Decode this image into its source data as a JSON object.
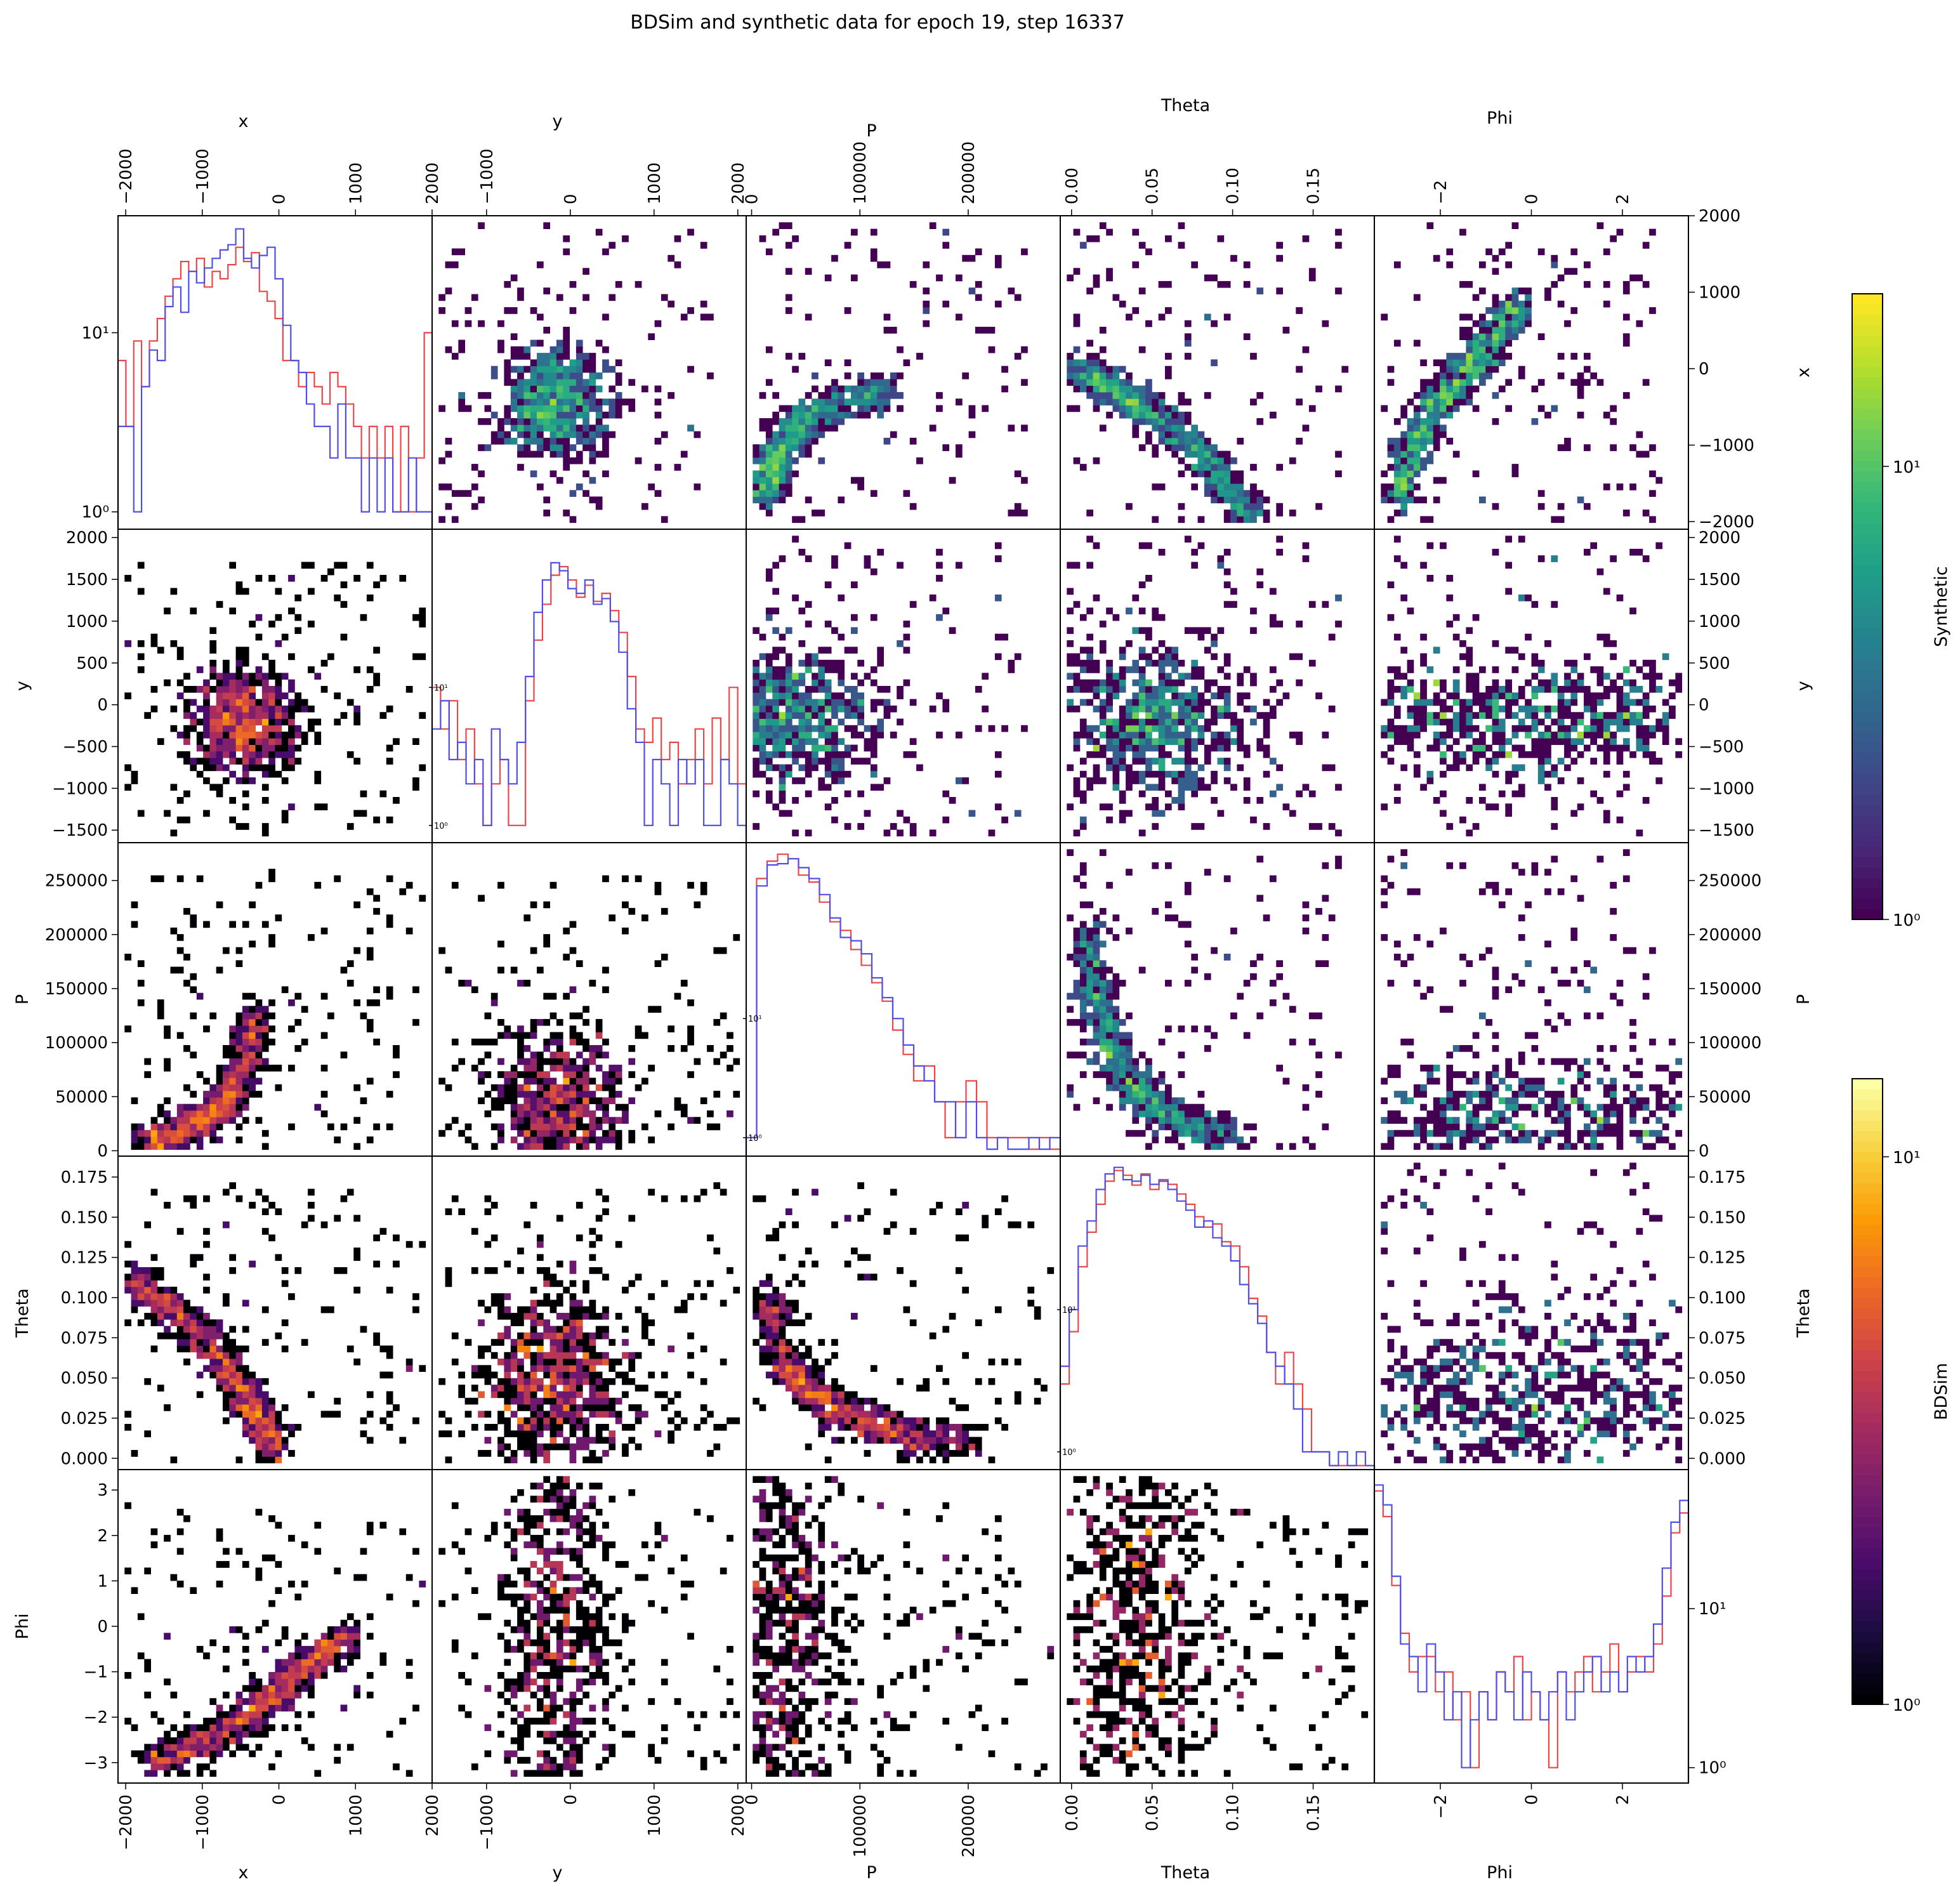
{
  "title": "BDSim and synthetic data for epoch 19, step 16337",
  "colorbars": [
    {
      "label": "Synthetic",
      "colormap": "viridis",
      "scale": "log",
      "tick_labels": [
        "10⁰",
        "10¹"
      ]
    },
    {
      "label": "BDSim",
      "colormap": "inferno",
      "scale": "log",
      "tick_labels": [
        "10⁰",
        "10¹"
      ]
    }
  ],
  "colors": {
    "bdsim_hist": "#e8474a",
    "synthetic_hist": "#4f4fe6",
    "frame": "#000000"
  },
  "chart_data": {
    "type": "pairplot",
    "variables": [
      "x",
      "y",
      "P",
      "Theta",
      "Phi"
    ],
    "lower_triangle": "BDSim 2D histograms (inferno, log color)",
    "upper_triangle": "Synthetic 2D histograms (viridis, log color)",
    "diagonal": "1D histograms, log y-scale (red = BDSim, blue = Synthetic)",
    "axes": {
      "x": {
        "range": [
          -2100,
          2000
        ],
        "ticks": [
          -2000,
          -1000,
          0,
          1000,
          2000
        ],
        "tick_labels": [
          "−2000",
          "−1000",
          "0",
          "1000",
          "2000"
        ]
      },
      "y": {
        "range": [
          -1650,
          2100
        ],
        "ticks": [
          -1500,
          -1000,
          -500,
          0,
          500,
          1000,
          1500,
          2000
        ],
        "tick_labels": [
          "−1500",
          "−1000",
          "−500",
          "0",
          "500",
          "1000",
          "1500",
          "2000"
        ],
        "top_ticks": [
          -1000,
          0,
          1000,
          2000
        ],
        "top_tick_labels": [
          "−1000",
          "0",
          "1000",
          "2000"
        ]
      },
      "P": {
        "range": [
          -5000,
          285000
        ],
        "ticks": [
          0,
          50000,
          100000,
          150000,
          200000,
          250000
        ],
        "tick_labels": [
          "0",
          "50000",
          "100000",
          "150000",
          "200000",
          "250000"
        ],
        "top_ticks": [
          0,
          100000,
          200000
        ],
        "top_tick_labels": [
          "0",
          "100000",
          "200000"
        ]
      },
      "Theta": {
        "range": [
          -0.007,
          0.188
        ],
        "ticks": [
          0.0,
          0.025,
          0.05,
          0.075,
          0.1,
          0.125,
          0.15,
          0.175
        ],
        "tick_labels": [
          "0.000",
          "0.025",
          "0.050",
          "0.075",
          "0.100",
          "0.125",
          "0.150",
          "0.175"
        ],
        "top_ticks": [
          0.0,
          0.05,
          0.1,
          0.15
        ],
        "top_tick_labels": [
          "0.00",
          "0.05",
          "0.10",
          "0.15"
        ]
      },
      "Phi": {
        "range": [
          -3.45,
          3.45
        ],
        "ticks": [
          -3,
          -2,
          -1,
          0,
          1,
          2,
          3
        ],
        "tick_labels": [
          "−3",
          "−2",
          "−1",
          "0",
          "1",
          "2",
          "3"
        ],
        "top_ticks": [
          -2,
          0,
          2
        ],
        "top_tick_labels": [
          "−2",
          "0",
          "2"
        ]
      }
    },
    "diagonal_histograms": {
      "x": {
        "bdsim": [
          7,
          3,
          9,
          5,
          9,
          12,
          16,
          20,
          25,
          22,
          26,
          18,
          22,
          20,
          24,
          30,
          25,
          28,
          17,
          15,
          12,
          7,
          7,
          5,
          6,
          5,
          4,
          6,
          5,
          4,
          3,
          2,
          3,
          2,
          3,
          1,
          3,
          1,
          2,
          10
        ],
        "synthetic": [
          3,
          3,
          1,
          5,
          8,
          7,
          14,
          18,
          13,
          22,
          19,
          23,
          26,
          29,
          31,
          38,
          26,
          23,
          27,
          30,
          20,
          11,
          7,
          6,
          4,
          3,
          3,
          2,
          4,
          2,
          2,
          1,
          2,
          1,
          2,
          1,
          1,
          2,
          1,
          1
        ],
        "ylim": [
          0.8,
          45
        ],
        "ytick_labels": [
          "10⁰",
          "10¹"
        ]
      },
      "y": {
        "bdsim": [
          10,
          5,
          8,
          3,
          5,
          2,
          1,
          2,
          3,
          1,
          1,
          8,
          22,
          40,
          65,
          75,
          60,
          45,
          55,
          42,
          48,
          36,
          25,
          12,
          5,
          4,
          6,
          3,
          4,
          2,
          3,
          5,
          2,
          6,
          3,
          10,
          2
        ],
        "synthetic": [
          5,
          8,
          3,
          4,
          2,
          3,
          1,
          5,
          3,
          2,
          4,
          12,
          35,
          60,
          80,
          70,
          52,
          48,
          60,
          40,
          44,
          30,
          18,
          7,
          4,
          1,
          3,
          2,
          1,
          3,
          2,
          3,
          1,
          1,
          3,
          2,
          1
        ],
        "ylim": [
          0.75,
          140
        ],
        "ytick_labels": [
          "10⁰",
          "10¹"
        ]
      },
      "P": {
        "bdsim": [
          1,
          150,
          210,
          240,
          220,
          160,
          140,
          95,
          65,
          55,
          38,
          28,
          20,
          14,
          8,
          5,
          3,
          4,
          2,
          1,
          2,
          3,
          2,
          1,
          1,
          1,
          1,
          0.8,
          1,
          0.8
        ],
        "synthetic": [
          1,
          130,
          195,
          200,
          220,
          185,
          150,
          110,
          70,
          48,
          45,
          35,
          22,
          15,
          10,
          6,
          4,
          3,
          2,
          2,
          1,
          2,
          1,
          0.8,
          1,
          0.8,
          0.8,
          1,
          0.8,
          1
        ],
        "ylim": [
          0.7,
          300
        ],
        "ytick_labels": [
          "10⁰",
          "10¹"
        ]
      },
      "Theta": {
        "bdsim": [
          3,
          7,
          20,
          35,
          55,
          80,
          95,
          88,
          75,
          90,
          70,
          82,
          76,
          65,
          55,
          45,
          38,
          40,
          30,
          28,
          20,
          12,
          9,
          5,
          3,
          5,
          3,
          2,
          1,
          1,
          0.8,
          0.8,
          0.8,
          0.8,
          0.8
        ],
        "synthetic": [
          4,
          10,
          28,
          42,
          70,
          90,
          100,
          82,
          80,
          88,
          76,
          80,
          70,
          58,
          50,
          38,
          42,
          32,
          28,
          22,
          15,
          11,
          8,
          5,
          4,
          3,
          2,
          1,
          1,
          1,
          0.8,
          1,
          0.8,
          1,
          0.8
        ],
        "ylim": [
          0.75,
          120
        ],
        "ytick_labels": [
          "10⁰",
          "10¹"
        ]
      },
      "Phi": {
        "bdsim": [
          55,
          38,
          14,
          7,
          4,
          5,
          5,
          3,
          4,
          2,
          3,
          1,
          3,
          2,
          4,
          3,
          5,
          2,
          3,
          2,
          1,
          4,
          3,
          4,
          5,
          3,
          4,
          6,
          3,
          4,
          5,
          4,
          6,
          12,
          30,
          40
        ],
        "synthetic": [
          60,
          45,
          16,
          6,
          5,
          3,
          6,
          4,
          2,
          3,
          1,
          2,
          3,
          2,
          4,
          3,
          2,
          4,
          3,
          2,
          3,
          4,
          2,
          3,
          4,
          5,
          3,
          4,
          3,
          5,
          4,
          5,
          8,
          18,
          35,
          48
        ],
        "ylim": [
          0.8,
          75
        ],
        "ytick_labels": [
          "10⁰",
          "10¹"
        ]
      }
    },
    "density_profiles": {
      "x-y": {
        "center": [
          -450,
          -200
        ],
        "spread": [
          350,
          330
        ],
        "peak": 18
      },
      "x-P": {
        "curve_x": [
          -1700,
          -1400,
          -1100,
          -800,
          -600,
          -400,
          -300
        ],
        "curve_y": [
          10000,
          15000,
          25000,
          38000,
          55000,
          90000,
          130000
        ],
        "peak": 12
      },
      "x-Theta": {
        "curve_x": [
          -2000,
          -1500,
          -1000,
          -600,
          -400,
          -200,
          0
        ],
        "curve_y": [
          0.115,
          0.095,
          0.075,
          0.05,
          0.035,
          0.02,
          0.003
        ],
        "peak": 14
      },
      "x-Phi": {
        "curve_x": [
          -1700,
          -1000,
          -400,
          0,
          400,
          900
        ],
        "curve_y": [
          -3.0,
          -2.6,
          -2.0,
          -1.4,
          -0.8,
          -0.2
        ],
        "peak": 10
      },
      "y-P": {
        "center": [
          -150,
          35000
        ],
        "spread": [
          400,
          40000
        ],
        "peak": 12
      },
      "y-Theta": {
        "center": [
          -200,
          0.05
        ],
        "spread": [
          450,
          0.03
        ],
        "peak": 10
      },
      "y-Phi": {
        "center": [
          -150,
          0
        ],
        "spread": [
          350,
          2.8
        ],
        "peak": 12
      },
      "P-Theta": {
        "curve_x": [
          15000,
          30000,
          55000,
          90000,
          140000,
          200000
        ],
        "curve_y": [
          0.1,
          0.06,
          0.04,
          0.025,
          0.015,
          0.008
        ],
        "peak": 12
      },
      "P-Phi": {
        "center": [
          30000,
          0
        ],
        "spread": [
          30000,
          3.0
        ],
        "peak": 14
      },
      "Theta-Phi": {
        "center": [
          0.04,
          0
        ],
        "spread": [
          0.025,
          3.0
        ],
        "peak": 10
      }
    }
  }
}
